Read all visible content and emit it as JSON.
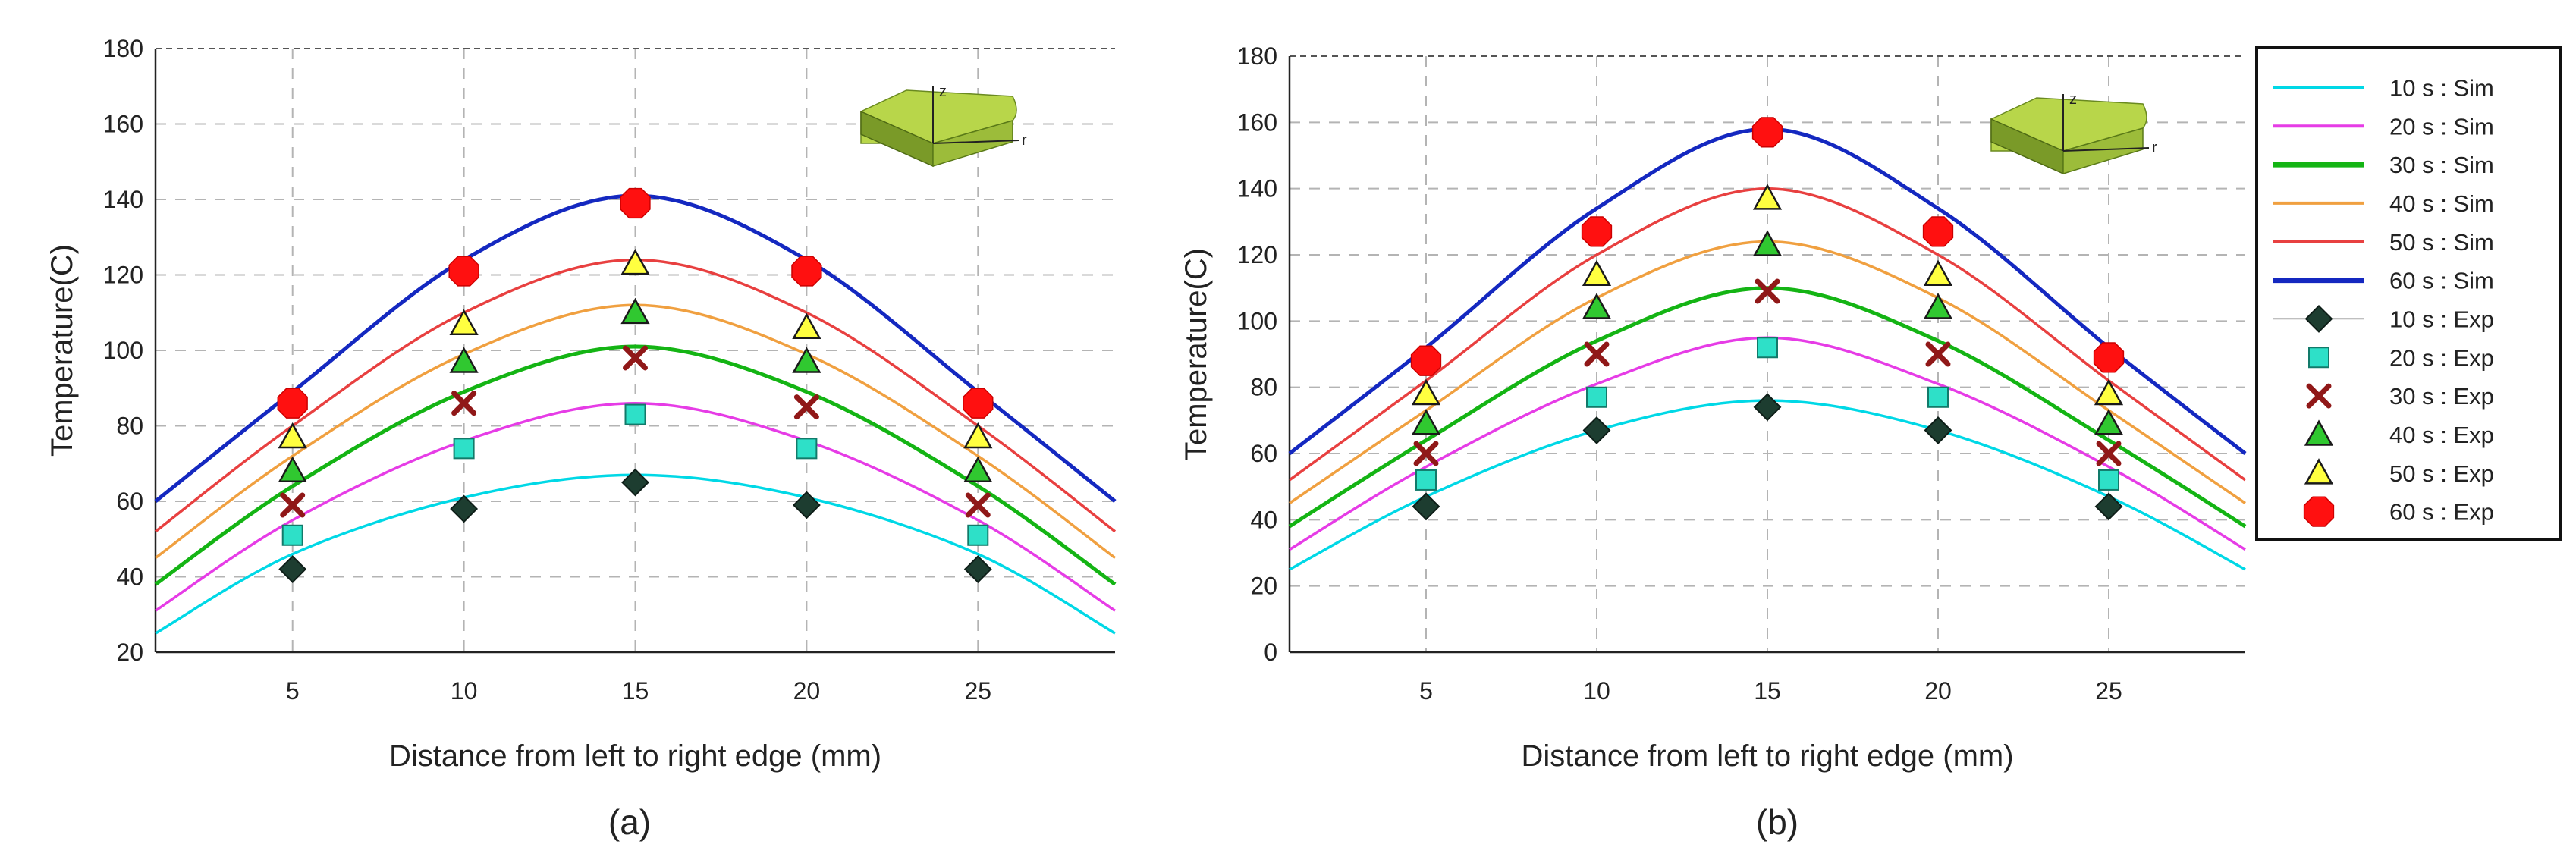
{
  "figure": {
    "labels": [
      "(a)",
      "(b)"
    ]
  },
  "colors": {
    "sim": [
      "#00d8e6",
      "#e63ce6",
      "#14b414",
      "#f0a040",
      "#e84040",
      "#1428c0"
    ],
    "exp_marker_fill": [
      "#1d3d30",
      "#2ee0c8",
      "#901818",
      "#30c830",
      "#ffff40",
      "#ff1010"
    ],
    "grid": "#b4b4b4",
    "body_face": "#b8d64a",
    "body_side": "#7a9a28"
  },
  "legend": {
    "items": [
      {
        "label": "10 s : Sim",
        "kind": "line",
        "idx": 0
      },
      {
        "label": "20 s : Sim",
        "kind": "line",
        "idx": 1
      },
      {
        "label": "30 s : Sim",
        "kind": "line",
        "idx": 2
      },
      {
        "label": "40 s : Sim",
        "kind": "line",
        "idx": 3
      },
      {
        "label": "50 s : Sim",
        "kind": "line",
        "idx": 4
      },
      {
        "label": "60 s : Sim",
        "kind": "line",
        "idx": 5
      },
      {
        "label": "10 s : Exp",
        "kind": "diamond",
        "idx": 0
      },
      {
        "label": "20 s : Exp",
        "kind": "square",
        "idx": 1
      },
      {
        "label": "30 s : Exp",
        "kind": "cross",
        "idx": 2
      },
      {
        "label": "40 s : Exp",
        "kind": "triangle",
        "idx": 3
      },
      {
        "label": "50 s : Exp",
        "kind": "triangle",
        "idx": 4
      },
      {
        "label": "60 s : Exp",
        "kind": "octagon",
        "idx": 5
      }
    ]
  },
  "chart_data": [
    {
      "type": "line",
      "panel": "(a)",
      "xlabel": "Distance from left to right edge (mm)",
      "ylabel": "Temperature(C)",
      "xlim": [
        1,
        29
      ],
      "ylim": [
        20,
        180
      ],
      "xticks": [
        5,
        10,
        15,
        20,
        25
      ],
      "yticks": [
        20,
        40,
        60,
        80,
        100,
        120,
        140,
        160,
        180
      ],
      "inset_axes": [
        "z",
        "r"
      ],
      "series": [
        {
          "name": "10 s : Sim",
          "kind": "sim",
          "idx": 0,
          "x": [
            1,
            5,
            10,
            15,
            20,
            25,
            29
          ],
          "y": [
            25,
            46,
            61,
            67,
            61,
            46,
            25
          ]
        },
        {
          "name": "20 s : Sim",
          "kind": "sim",
          "idx": 1,
          "x": [
            1,
            5,
            10,
            15,
            20,
            25,
            29
          ],
          "y": [
            31,
            55,
            76,
            86,
            76,
            55,
            31
          ]
        },
        {
          "name": "30 s : Sim",
          "kind": "sim",
          "idx": 2,
          "x": [
            1,
            5,
            10,
            15,
            20,
            25,
            29
          ],
          "y": [
            38,
            64,
            89,
            101,
            89,
            64,
            38
          ]
        },
        {
          "name": "40 s : Sim",
          "kind": "sim",
          "idx": 3,
          "x": [
            1,
            5,
            10,
            15,
            20,
            25,
            29
          ],
          "y": [
            45,
            72,
            99,
            112,
            99,
            72,
            45
          ]
        },
        {
          "name": "50 s : Sim",
          "kind": "sim",
          "idx": 4,
          "x": [
            1,
            5,
            10,
            15,
            20,
            25,
            29
          ],
          "y": [
            52,
            80,
            110,
            124,
            110,
            80,
            52
          ]
        },
        {
          "name": "60 s : Sim",
          "kind": "sim",
          "idx": 5,
          "x": [
            1,
            5,
            10,
            15,
            20,
            25,
            29
          ],
          "y": [
            60,
            89,
            124,
            141,
            124,
            89,
            60
          ]
        },
        {
          "name": "10 s : Exp",
          "kind": "exp",
          "idx": 0,
          "marker": "diamond",
          "x": [
            5,
            10,
            15,
            20,
            25
          ],
          "y": [
            42,
            58,
            65,
            59,
            42
          ]
        },
        {
          "name": "20 s : Exp",
          "kind": "exp",
          "idx": 1,
          "marker": "square",
          "x": [
            5,
            10,
            15,
            20,
            25
          ],
          "y": [
            51,
            74,
            83,
            74,
            51
          ]
        },
        {
          "name": "30 s : Exp",
          "kind": "exp",
          "idx": 2,
          "marker": "cross",
          "x": [
            5,
            10,
            15,
            20,
            25
          ],
          "y": [
            59,
            86,
            98,
            85,
            59
          ]
        },
        {
          "name": "40 s : Exp",
          "kind": "exp",
          "idx": 3,
          "marker": "triangle",
          "x": [
            5,
            10,
            15,
            20,
            25
          ],
          "y": [
            68,
            97,
            110,
            97,
            68
          ]
        },
        {
          "name": "50 s : Exp",
          "kind": "exp",
          "idx": 4,
          "marker": "triangle",
          "x": [
            5,
            10,
            15,
            20,
            25
          ],
          "y": [
            77,
            107,
            123,
            106,
            77
          ]
        },
        {
          "name": "60 s : Exp",
          "kind": "exp",
          "idx": 5,
          "marker": "octagon",
          "x": [
            5,
            10,
            15,
            20,
            25
          ],
          "y": [
            86,
            121,
            139,
            121,
            86
          ]
        }
      ]
    },
    {
      "type": "line",
      "panel": "(b)",
      "xlabel": "Distance from left to right edge (mm)",
      "ylabel": "Temperature(C)",
      "xlim": [
        1,
        29
      ],
      "ylim": [
        0,
        180
      ],
      "xticks": [
        5,
        10,
        15,
        20,
        25
      ],
      "yticks": [
        0,
        20,
        40,
        60,
        80,
        100,
        120,
        140,
        160,
        180
      ],
      "inset_axes": [
        "z",
        "r"
      ],
      "series": [
        {
          "name": "10 s : Sim",
          "kind": "sim",
          "idx": 0,
          "x": [
            1,
            5,
            10,
            15,
            20,
            25,
            29
          ],
          "y": [
            25,
            47,
            67,
            76,
            67,
            47,
            25
          ]
        },
        {
          "name": "20 s : Sim",
          "kind": "sim",
          "idx": 1,
          "x": [
            1,
            5,
            10,
            15,
            20,
            25,
            29
          ],
          "y": [
            31,
            56,
            81,
            95,
            81,
            56,
            31
          ]
        },
        {
          "name": "30 s : Sim",
          "kind": "sim",
          "idx": 2,
          "x": [
            1,
            5,
            10,
            15,
            20,
            25,
            29
          ],
          "y": [
            38,
            64,
            94,
            110,
            94,
            64,
            38
          ]
        },
        {
          "name": "40 s : Sim",
          "kind": "sim",
          "idx": 3,
          "x": [
            1,
            5,
            10,
            15,
            20,
            25,
            29
          ],
          "y": [
            45,
            73,
            107,
            124,
            107,
            73,
            45
          ]
        },
        {
          "name": "50 s : Sim",
          "kind": "sim",
          "idx": 4,
          "x": [
            1,
            5,
            10,
            15,
            20,
            25,
            29
          ],
          "y": [
            52,
            82,
            120,
            140,
            120,
            82,
            52
          ]
        },
        {
          "name": "60 s : Sim",
          "kind": "sim",
          "idx": 5,
          "x": [
            1,
            5,
            10,
            15,
            20,
            25,
            29
          ],
          "y": [
            60,
            92,
            134,
            158,
            134,
            92,
            60
          ]
        },
        {
          "name": "10 s : Exp",
          "kind": "exp",
          "idx": 0,
          "marker": "diamond",
          "x": [
            5,
            10,
            15,
            20,
            25
          ],
          "y": [
            44,
            67,
            74,
            67,
            44
          ]
        },
        {
          "name": "20 s : Exp",
          "kind": "exp",
          "idx": 1,
          "marker": "square",
          "x": [
            5,
            10,
            15,
            20,
            25
          ],
          "y": [
            52,
            77,
            92,
            77,
            52
          ]
        },
        {
          "name": "30 s : Exp",
          "kind": "exp",
          "idx": 2,
          "marker": "cross",
          "x": [
            5,
            10,
            15,
            20,
            25
          ],
          "y": [
            60,
            90,
            109,
            90,
            60
          ]
        },
        {
          "name": "40 s : Exp",
          "kind": "exp",
          "idx": 3,
          "marker": "triangle",
          "x": [
            5,
            10,
            15,
            20,
            25
          ],
          "y": [
            69,
            104,
            123,
            104,
            69
          ]
        },
        {
          "name": "50 s : Exp",
          "kind": "exp",
          "idx": 4,
          "marker": "triangle",
          "x": [
            5,
            10,
            15,
            20,
            25
          ],
          "y": [
            78,
            114,
            137,
            114,
            78
          ]
        },
        {
          "name": "60 s : Exp",
          "kind": "exp",
          "idx": 5,
          "marker": "octagon",
          "x": [
            5,
            10,
            15,
            20,
            25
          ],
          "y": [
            88,
            127,
            157,
            127,
            89
          ]
        }
      ]
    }
  ]
}
